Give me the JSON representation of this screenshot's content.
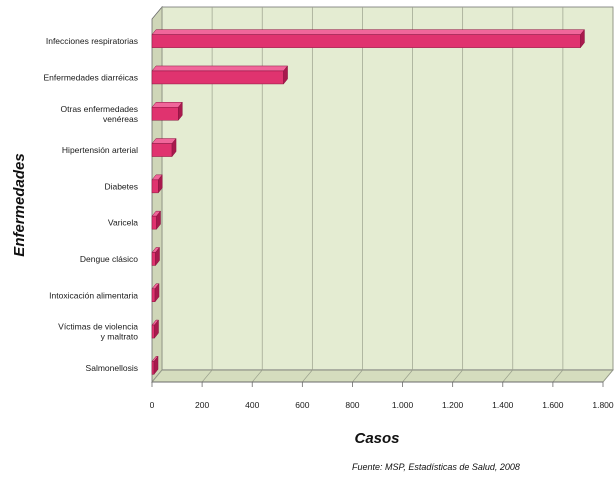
{
  "chart_data": {
    "type": "bar",
    "orientation": "horizontal",
    "three_d": true,
    "categories": [
      "Infecciones respiratorias",
      "Enfermedades diarréicas",
      "Otras enfermedades venéreas",
      "Hipertensión arterial",
      "Diabetes",
      "Varicela",
      "Dengue clásico",
      "Intoxicación alimentaria",
      "Víctimas de violencia y maltrato",
      "Salmonellosis"
    ],
    "category_label_lines": [
      [
        "Infecciones respiratorias"
      ],
      [
        "Enfermedades diarréicas"
      ],
      [
        "Otras enfermedades",
        "venéreas"
      ],
      [
        "Hipertensión arterial"
      ],
      [
        "Diabetes"
      ],
      [
        "Varicela"
      ],
      [
        "Dengue clásico"
      ],
      [
        "Intoxicación alimentaria"
      ],
      [
        "Víctimas de violencia",
        "y maltrato"
      ],
      [
        "Salmonellosis"
      ]
    ],
    "values": [
      1710,
      525,
      105,
      80,
      25,
      18,
      14,
      12,
      10,
      8
    ],
    "xlim": [
      0,
      1800
    ],
    "xticks": [
      0,
      200,
      400,
      600,
      800,
      1000,
      1200,
      1400,
      1600,
      1800
    ],
    "xtick_labels": [
      "0",
      "200",
      "400",
      "600",
      "800",
      "1.000",
      "1.200",
      "1.400",
      "1.600",
      "1.800"
    ],
    "xlabel": "Casos",
    "ylabel": "Enfermedades",
    "grid": true,
    "source_note": "Fuente: MSP, Estadísticas de Salud, 2008",
    "colors": {
      "bar_front": "#e0336f",
      "bar_top": "#f0669a",
      "bar_side": "#a8194d",
      "plot_back": "#e4ecd2",
      "plot_floor": "#d5ddbe",
      "grid": "#9aa08c",
      "axis": "#6b6b6b"
    }
  }
}
